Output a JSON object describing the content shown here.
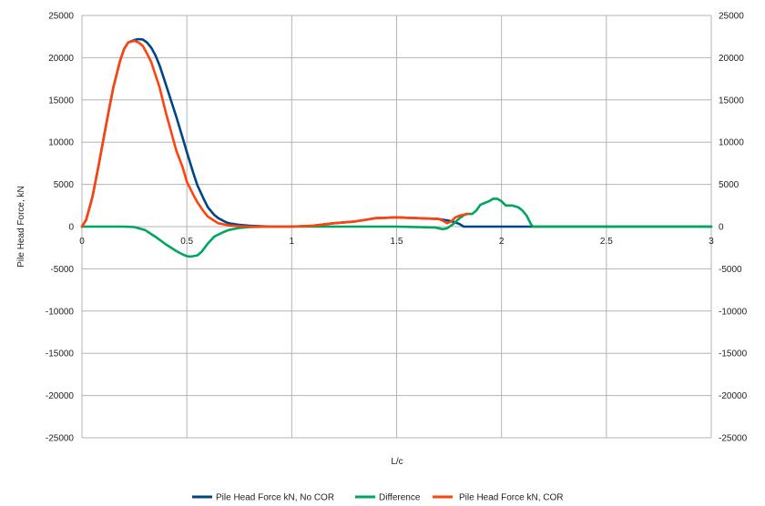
{
  "chart_data": {
    "type": "line",
    "title": "",
    "xlabel": "L/c",
    "ylabel": "Pile Head Force, kN",
    "xlim": [
      0,
      3
    ],
    "ylim": [
      -25000,
      25000
    ],
    "x_ticks": [
      "0",
      "0.5",
      "1",
      "1.5",
      "2",
      "2.5",
      "3"
    ],
    "y_ticks": [
      "25000",
      "20000",
      "15000",
      "10000",
      "5000",
      "0",
      "-5000",
      "-10000",
      "-15000",
      "-20000",
      "-25000"
    ],
    "grid": true,
    "legend_position": "bottom",
    "series": [
      {
        "name": "Pile Head Force kN, No COR",
        "color": "#004586",
        "x": [
          0,
          0.02,
          0.05,
          0.08,
          0.1,
          0.13,
          0.15,
          0.18,
          0.2,
          0.22,
          0.25,
          0.27,
          0.29,
          0.31,
          0.33,
          0.35,
          0.37,
          0.39,
          0.42,
          0.45,
          0.48,
          0.5,
          0.53,
          0.55,
          0.58,
          0.6,
          0.63,
          0.65,
          0.68,
          0.7,
          0.75,
          0.8,
          0.9,
          1.0,
          1.1,
          1.2,
          1.3,
          1.35,
          1.4,
          1.45,
          1.5,
          1.55,
          1.6,
          1.65,
          1.7,
          1.75,
          1.78,
          1.8,
          1.82,
          1.85,
          2.0,
          2.5,
          3.0
        ],
        "y": [
          0,
          800,
          3500,
          7300,
          10000,
          14000,
          16500,
          19500,
          21000,
          21800,
          22100,
          22200,
          22150,
          21800,
          21200,
          20300,
          19100,
          17600,
          15300,
          13000,
          10500,
          8800,
          6400,
          4900,
          3300,
          2300,
          1400,
          1000,
          600,
          400,
          200,
          100,
          0,
          0,
          100,
          400,
          600,
          800,
          1000,
          1050,
          1100,
          1050,
          1000,
          950,
          900,
          700,
          500,
          300,
          0,
          0,
          0,
          0,
          0
        ]
      },
      {
        "name": "Difference",
        "color": "#00a65d",
        "x": [
          0,
          0.2,
          0.25,
          0.3,
          0.35,
          0.4,
          0.45,
          0.48,
          0.5,
          0.52,
          0.55,
          0.57,
          0.6,
          0.63,
          0.67,
          0.7,
          0.75,
          0.8,
          0.9,
          1.0,
          1.5,
          1.68,
          1.72,
          1.74,
          1.77,
          1.8,
          1.83,
          1.86,
          1.88,
          1.9,
          1.92,
          1.94,
          1.96,
          1.98,
          2.0,
          2.02,
          2.05,
          2.08,
          2.1,
          2.12,
          2.14,
          2.15,
          2.5,
          3.0
        ],
        "y": [
          0,
          0,
          -50,
          -400,
          -1200,
          -2100,
          -2900,
          -3300,
          -3500,
          -3550,
          -3400,
          -3000,
          -2000,
          -1200,
          -700,
          -400,
          -150,
          -50,
          0,
          0,
          0,
          -100,
          -300,
          -200,
          300,
          1000,
          1500,
          1500,
          1900,
          2600,
          2800,
          3000,
          3300,
          3300,
          3000,
          2500,
          2500,
          2300,
          1900,
          1300,
          300,
          0,
          0,
          0
        ]
      },
      {
        "name": "Pile Head Force kN, COR",
        "color": "#ff420e",
        "x": [
          0,
          0.02,
          0.05,
          0.08,
          0.1,
          0.13,
          0.15,
          0.18,
          0.2,
          0.22,
          0.25,
          0.27,
          0.29,
          0.31,
          0.33,
          0.35,
          0.37,
          0.4,
          0.43,
          0.45,
          0.48,
          0.5,
          0.53,
          0.55,
          0.58,
          0.6,
          0.63,
          0.65,
          0.7,
          0.75,
          0.8,
          0.9,
          1.0,
          1.1,
          1.2,
          1.3,
          1.35,
          1.4,
          1.45,
          1.5,
          1.55,
          1.6,
          1.65,
          1.7,
          1.72,
          1.74,
          1.76,
          1.78,
          1.8,
          1.82,
          1.84
        ],
        "y": [
          0,
          800,
          3500,
          7300,
          10000,
          14000,
          16500,
          19500,
          21000,
          21800,
          22000,
          21800,
          21400,
          20500,
          19500,
          18000,
          16500,
          13500,
          10800,
          9000,
          7000,
          5300,
          3800,
          2900,
          1800,
          1200,
          700,
          400,
          150,
          50,
          0,
          0,
          0,
          100,
          400,
          600,
          800,
          1000,
          1050,
          1100,
          1050,
          1000,
          950,
          900,
          700,
          400,
          600,
          1100,
          1300,
          1400,
          1500
        ]
      }
    ]
  }
}
